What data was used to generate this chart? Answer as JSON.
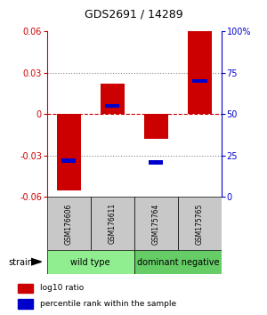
{
  "title": "GDS2691 / 14289",
  "samples": [
    "GSM176606",
    "GSM176611",
    "GSM175764",
    "GSM175765"
  ],
  "log10_ratios": [
    -0.055,
    0.022,
    -0.018,
    0.06
  ],
  "percentile_ranks": [
    22,
    55,
    21,
    70
  ],
  "groups": [
    {
      "name": "wild type",
      "samples": [
        0,
        1
      ],
      "color": "#90ee90"
    },
    {
      "name": "dominant negative",
      "samples": [
        2,
        3
      ],
      "color": "#66cc66"
    }
  ],
  "group_label": "strain",
  "ylim": [
    -0.06,
    0.06
  ],
  "yticks_left": [
    -0.06,
    -0.03,
    0,
    0.03,
    0.06
  ],
  "yticks_right": [
    0,
    25,
    50,
    75,
    100
  ],
  "red_color": "#cc0000",
  "blue_color": "#0000cc",
  "legend_red": "log10 ratio",
  "legend_blue": "percentile rank within the sample",
  "zero_line_color": "#cc0000",
  "grid_color": "#888888",
  "sample_box_color": "#c8c8c8",
  "background_color": "#ffffff",
  "title_fontsize": 9,
  "tick_fontsize": 7,
  "legend_fontsize": 6.5,
  "sample_fontsize": 5.5,
  "group_fontsize": 7
}
